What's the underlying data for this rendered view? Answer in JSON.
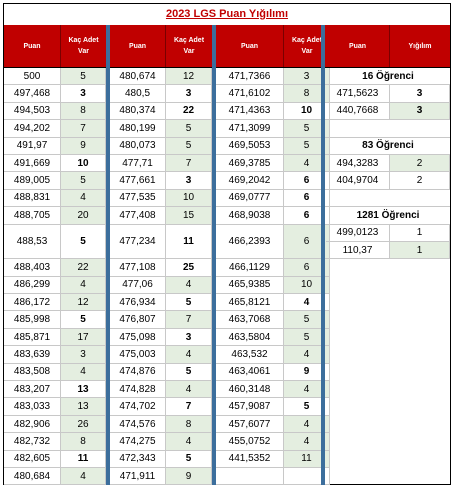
{
  "title": "2023 LGS Puan Yığılımı",
  "headers": {
    "puan": "Puan",
    "kac": "Kaç Adet Var",
    "yigilim": "Yığılım"
  },
  "columns": [
    [
      [
        "500",
        "5"
      ],
      [
        "497,468",
        "3"
      ],
      [
        "494,503",
        "8"
      ],
      [
        "494,202",
        "7"
      ],
      [
        "491,97",
        "9"
      ],
      [
        "491,669",
        "10"
      ],
      [
        "489,005",
        "5"
      ],
      [
        "488,831",
        "4"
      ],
      [
        "488,705",
        "20"
      ],
      [
        "488,53",
        "5"
      ],
      [
        "488,403",
        "22"
      ],
      [
        "486,299",
        "4"
      ],
      [
        "486,172",
        "12"
      ],
      [
        "485,998",
        "5"
      ],
      [
        "485,871",
        "17"
      ],
      [
        "483,639",
        "3"
      ],
      [
        "483,508",
        "4"
      ],
      [
        "483,207",
        "13"
      ],
      [
        "483,033",
        "13"
      ],
      [
        "482,906",
        "26"
      ],
      [
        "482,732",
        "8"
      ],
      [
        "482,605",
        "11"
      ],
      [
        "480,684",
        "4"
      ]
    ],
    [
      [
        "480,674",
        "12"
      ],
      [
        "480,5",
        "3"
      ],
      [
        "480,374",
        "22"
      ],
      [
        "480,199",
        "5"
      ],
      [
        "480,073",
        "5"
      ],
      [
        "477,71",
        "7"
      ],
      [
        "477,661",
        "3"
      ],
      [
        "477,535",
        "10"
      ],
      [
        "477,408",
        "15"
      ],
      [
        "477,234",
        "11"
      ],
      [
        "477,108",
        "25"
      ],
      [
        "477,06",
        "4"
      ],
      [
        "476,934",
        "5"
      ],
      [
        "476,807",
        "7"
      ],
      [
        "475,098",
        "3"
      ],
      [
        "475,003",
        "4"
      ],
      [
        "474,876",
        "5"
      ],
      [
        "474,828",
        "4"
      ],
      [
        "474,702",
        "7"
      ],
      [
        "474,576",
        "8"
      ],
      [
        "474,275",
        "4"
      ],
      [
        "472,343",
        "5"
      ],
      [
        "471,911",
        "9"
      ]
    ],
    [
      [
        "471,7366",
        "3"
      ],
      [
        "471,6102",
        "8"
      ],
      [
        "471,4363",
        "10"
      ],
      [
        "471,3099",
        "5"
      ],
      [
        "469,5053",
        "5"
      ],
      [
        "469,3785",
        "4"
      ],
      [
        "469,2042",
        "6"
      ],
      [
        "469,0777",
        "6"
      ],
      [
        "468,9038",
        "6"
      ],
      [
        "466,2393",
        "6"
      ],
      [
        "466,1129",
        "6"
      ],
      [
        "465,9385",
        "10"
      ],
      [
        "465,8121",
        "4"
      ],
      [
        "463,7068",
        "5"
      ],
      [
        "463,5804",
        "5"
      ],
      [
        "463,532",
        "4"
      ],
      [
        "463,4061",
        "9"
      ],
      [
        "460,3148",
        "4"
      ],
      [
        "457,9087",
        "5"
      ],
      [
        "457,6077",
        "4"
      ],
      [
        "455,0752",
        "4"
      ],
      [
        "441,5352",
        "11"
      ],
      [
        "",
        ""
      ]
    ]
  ],
  "groups": [
    {
      "label": "16 Öğrenci",
      "rows": [
        [
          "471,5623",
          "3"
        ],
        [
          "440,7668",
          "3"
        ]
      ]
    },
    {
      "label": "83 Öğrenci",
      "rows": [
        [
          "494,3283",
          "2"
        ],
        [
          "404,9704",
          "2"
        ]
      ]
    },
    {
      "label": "1281 Öğrenci",
      "rows": [
        [
          "499,0123",
          "1"
        ],
        [
          "110,37",
          "1"
        ]
      ]
    }
  ]
}
